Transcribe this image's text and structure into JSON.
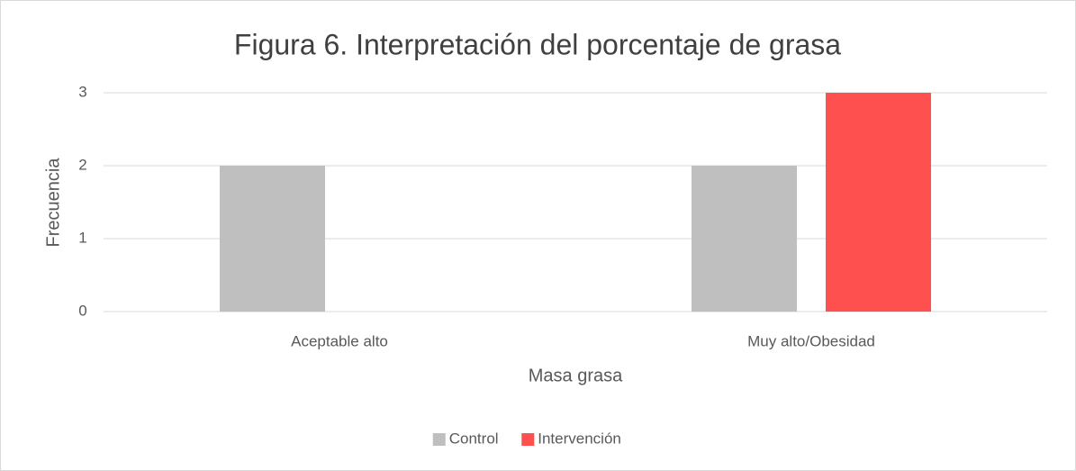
{
  "chart_data": {
    "type": "bar",
    "title": "Figura 6. Interpretación del porcentaje de grasa",
    "x_label": "Masa grasa",
    "y_label": "Frecuencia",
    "categories": [
      "Aceptable alto",
      "Muy alto/Obesidad"
    ],
    "series": [
      {
        "name": "Control",
        "color": "#bfbfbf",
        "values": [
          2,
          2
        ]
      },
      {
        "name": "Intervención",
        "color": "#ff5050",
        "values": [
          0,
          3
        ]
      }
    ],
    "ylim": [
      0,
      3
    ],
    "yticks": [
      0,
      1,
      2,
      3
    ],
    "grid": true,
    "legend": "bottom"
  }
}
